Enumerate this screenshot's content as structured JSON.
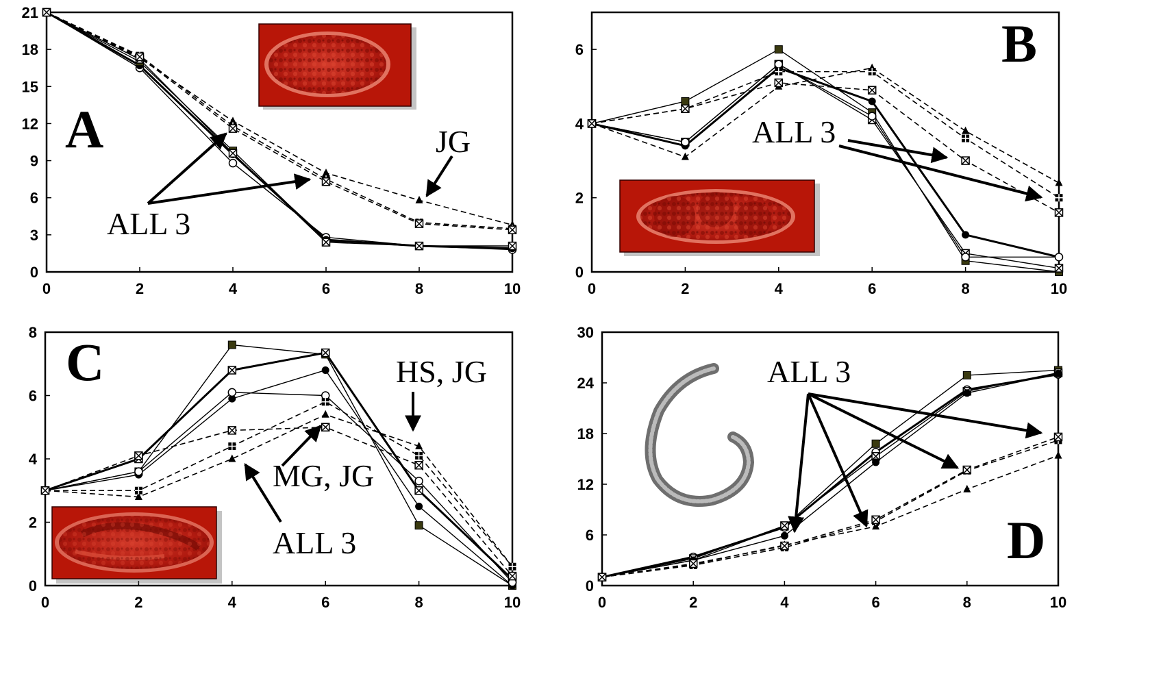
{
  "chart_data": [
    {
      "panel": "A",
      "type": "line",
      "xlim": [
        0,
        10
      ],
      "ylim": [
        0,
        21
      ],
      "xticks": [
        0,
        2,
        4,
        6,
        8,
        10
      ],
      "yticks": [
        0,
        3,
        6,
        9,
        12,
        15,
        18,
        21
      ],
      "x": [
        0,
        2,
        4,
        6,
        8,
        10
      ],
      "series": [
        {
          "style": "solid",
          "marker": "circle-open",
          "values": [
            21,
            16.5,
            8.8,
            2.8,
            2.1,
            1.8
          ]
        },
        {
          "style": "solid",
          "marker": "circle-filled",
          "values": [
            21,
            16.7,
            9.5,
            2.6,
            2.1,
            1.9
          ]
        },
        {
          "style": "solid",
          "marker": "square-filled",
          "values": [
            21,
            17.0,
            9.8,
            2.5,
            2.1,
            2.1
          ]
        },
        {
          "style": "solid",
          "marker": "square-x",
          "values": [
            21,
            17.2,
            9.6,
            2.4,
            2.1,
            2.1
          ]
        },
        {
          "style": "dashed",
          "marker": "triangle",
          "values": [
            21,
            17.3,
            12.2,
            8.0,
            5.8,
            3.8
          ]
        },
        {
          "style": "dashed",
          "marker": "square-plus",
          "values": [
            21,
            17.5,
            11.8,
            7.5,
            4.0,
            3.5
          ]
        },
        {
          "style": "dashed",
          "marker": "square-x",
          "values": [
            21,
            17.4,
            11.6,
            7.3,
            3.9,
            3.4
          ]
        }
      ],
      "annotations": {
        "label": "A",
        "all3": "ALL 3",
        "jg": "JG"
      }
    },
    {
      "panel": "B",
      "type": "line",
      "xlim": [
        0,
        10
      ],
      "ylim": [
        0,
        7
      ],
      "xticks": [
        0,
        2,
        4,
        6,
        8,
        10
      ],
      "yticks": [
        0,
        2,
        4,
        6
      ],
      "x": [
        0,
        2,
        4,
        6,
        8,
        10
      ],
      "series": [
        {
          "style": "solid",
          "marker": "square-filled",
          "values": [
            4,
            4.6,
            6.0,
            4.3,
            0.3,
            0.0
          ]
        },
        {
          "style": "solid",
          "marker": "circle-filled",
          "values": [
            4,
            3.4,
            5.5,
            4.6,
            1.0,
            0.4
          ]
        },
        {
          "style": "solid",
          "marker": "square-x",
          "values": [
            4,
            3.5,
            5.6,
            4.1,
            0.5,
            0.1
          ]
        },
        {
          "style": "solid",
          "marker": "circle-open",
          "values": [
            4,
            3.5,
            5.6,
            4.2,
            0.4,
            0.4
          ]
        },
        {
          "style": "dashed",
          "marker": "triangle",
          "values": [
            4,
            3.1,
            5.0,
            5.5,
            3.8,
            2.4
          ]
        },
        {
          "style": "dashed",
          "marker": "square-plus",
          "values": [
            4,
            4.4,
            5.4,
            5.4,
            3.6,
            2.0
          ]
        },
        {
          "style": "dashed",
          "marker": "square-x",
          "values": [
            4,
            4.4,
            5.1,
            4.9,
            3.0,
            1.6
          ]
        }
      ],
      "annotations": {
        "label": "B",
        "all3": "ALL 3"
      }
    },
    {
      "panel": "C",
      "type": "line",
      "xlim": [
        0,
        10
      ],
      "ylim": [
        0,
        8
      ],
      "xticks": [
        0,
        2,
        4,
        6,
        8,
        10
      ],
      "yticks": [
        0,
        2,
        4,
        6,
        8
      ],
      "x": [
        0,
        2,
        4,
        6,
        8,
        10
      ],
      "series": [
        {
          "style": "solid",
          "marker": "square-filled",
          "values": [
            3,
            3.6,
            7.6,
            7.3,
            1.9,
            0.0
          ]
        },
        {
          "style": "solid",
          "marker": "square-x",
          "values": [
            3,
            4.0,
            6.8,
            7.35,
            3.0,
            0.2
          ]
        },
        {
          "style": "solid",
          "marker": "circle-filled",
          "values": [
            3,
            3.5,
            5.9,
            6.8,
            2.5,
            0.0
          ]
        },
        {
          "style": "solid",
          "marker": "circle-open",
          "values": [
            3,
            3.6,
            6.1,
            6.0,
            3.3,
            0.1
          ]
        },
        {
          "style": "dashed",
          "marker": "triangle",
          "values": [
            3,
            2.8,
            4.0,
            5.4,
            4.4,
            0.6
          ]
        },
        {
          "style": "dashed",
          "marker": "square-plus",
          "values": [
            3,
            3.0,
            4.4,
            5.8,
            4.1,
            0.6
          ]
        },
        {
          "style": "dashed",
          "marker": "square-x",
          "values": [
            3,
            4.1,
            4.9,
            5.0,
            3.8,
            0.3
          ]
        }
      ],
      "annotations": {
        "label": "C",
        "hsjg": "HS, JG",
        "mgjg": "MG, JG",
        "all3": "ALL 3"
      }
    },
    {
      "panel": "D",
      "type": "line",
      "xlim": [
        0,
        10
      ],
      "ylim": [
        0,
        30
      ],
      "xticks": [
        0,
        2,
        4,
        6,
        8,
        10
      ],
      "yticks": [
        0,
        6,
        12,
        18,
        24,
        30
      ],
      "x": [
        0,
        2,
        4,
        6,
        8,
        10
      ],
      "series": [
        {
          "style": "solid",
          "marker": "square-filled",
          "values": [
            1,
            3.0,
            7.0,
            16.8,
            24.9,
            25.5
          ]
        },
        {
          "style": "solid",
          "marker": "circle-open",
          "values": [
            1,
            3.4,
            6.9,
            15.8,
            23.2,
            25.0
          ]
        },
        {
          "style": "solid",
          "marker": "square-x",
          "values": [
            1,
            3.2,
            7.1,
            15.3,
            23.0,
            25.2
          ]
        },
        {
          "style": "solid",
          "marker": "circle-filled",
          "values": [
            1,
            3.0,
            5.9,
            14.6,
            22.8,
            25.1
          ]
        },
        {
          "style": "dashed",
          "marker": "triangle",
          "values": [
            1,
            2.5,
            4.8,
            7.0,
            11.4,
            15.4
          ]
        },
        {
          "style": "dashed",
          "marker": "square-plus",
          "values": [
            1,
            2.4,
            4.5,
            7.6,
            13.6,
            17.2
          ]
        },
        {
          "style": "dashed",
          "marker": "square-x",
          "values": [
            1,
            2.6,
            4.7,
            7.8,
            13.7,
            17.6
          ]
        }
      ],
      "annotations": {
        "label": "D",
        "all3": "ALL 3"
      }
    }
  ],
  "images": {
    "A": "early-embryo-photo",
    "B": "two-cell-embryo-photo",
    "C": "comma-stage-embryo-photo",
    "D": "larva-worm-photo"
  }
}
